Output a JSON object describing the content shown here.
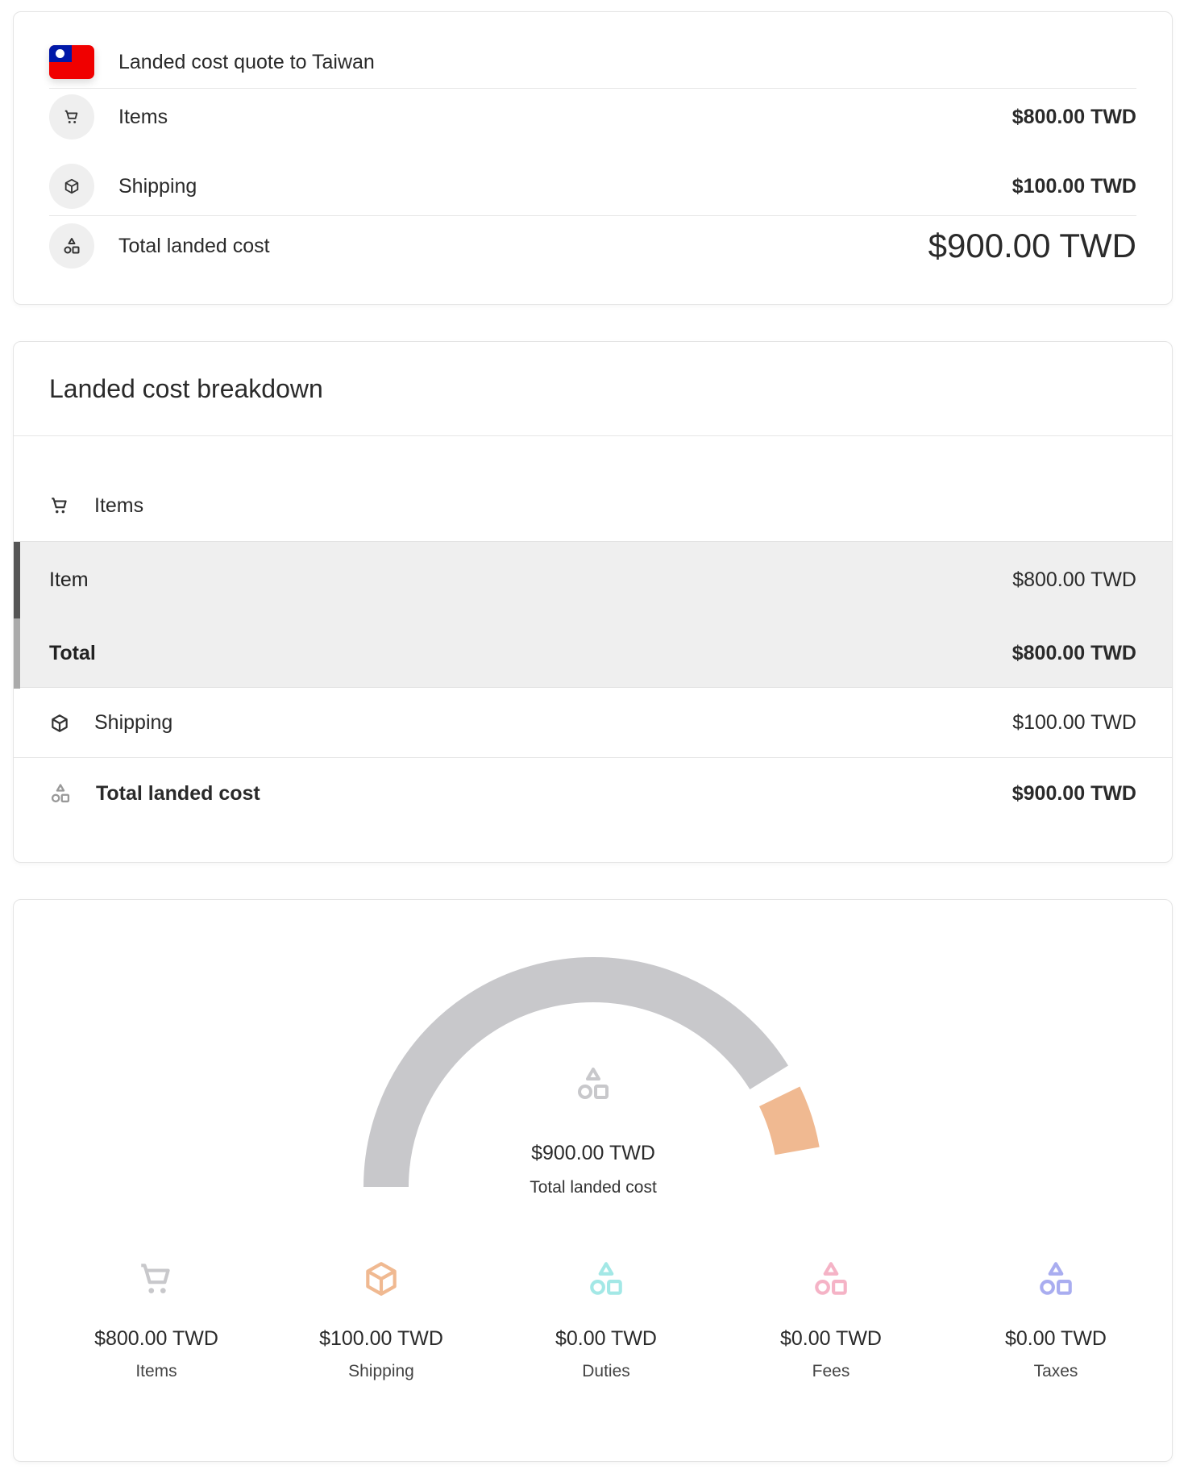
{
  "quote": {
    "title": "Landed cost quote to Taiwan",
    "flag_icon": "taiwan-flag-icon",
    "rows": [
      {
        "label": "Items",
        "value": "$800.00 TWD",
        "icon": "cart-icon"
      },
      {
        "label": "Shipping",
        "value": "$100.00 TWD",
        "icon": "box-icon"
      },
      {
        "label": "Total landed cost",
        "value": "$900.00 TWD",
        "icon": "shapes-icon"
      }
    ]
  },
  "breakdown": {
    "title": "Landed cost breakdown",
    "items_label": "Items",
    "item_row": {
      "label": "Item",
      "value": "$800.00 TWD"
    },
    "total_row": {
      "label": "Total",
      "value": "$800.00 TWD"
    },
    "shipping": {
      "label": "Shipping",
      "value": "$100.00 TWD"
    },
    "total_landed": {
      "label": "Total landed cost",
      "value": "$900.00 TWD"
    }
  },
  "gauge": {
    "value": "$900.00 TWD",
    "label": "Total landed cost",
    "segments": [
      {
        "name": "Items",
        "amount": 800,
        "color": "#c8c8cb"
      },
      {
        "name": "Shipping",
        "amount": 100,
        "color": "#f0b991"
      }
    ],
    "columns": [
      {
        "value": "$800.00 TWD",
        "label": "Items",
        "icon": "cart-icon",
        "color": "#c8c8cb"
      },
      {
        "value": "$100.00 TWD",
        "label": "Shipping",
        "icon": "box-icon",
        "color": "#f0b991"
      },
      {
        "value": "$0.00 TWD",
        "label": "Duties",
        "icon": "shapes-icon",
        "color": "#a3e8e6"
      },
      {
        "value": "$0.00 TWD",
        "label": "Fees",
        "icon": "shapes-icon",
        "color": "#f5b3c6"
      },
      {
        "value": "$0.00 TWD",
        "label": "Taxes",
        "icon": "shapes-icon",
        "color": "#a9adf0"
      }
    ]
  }
}
